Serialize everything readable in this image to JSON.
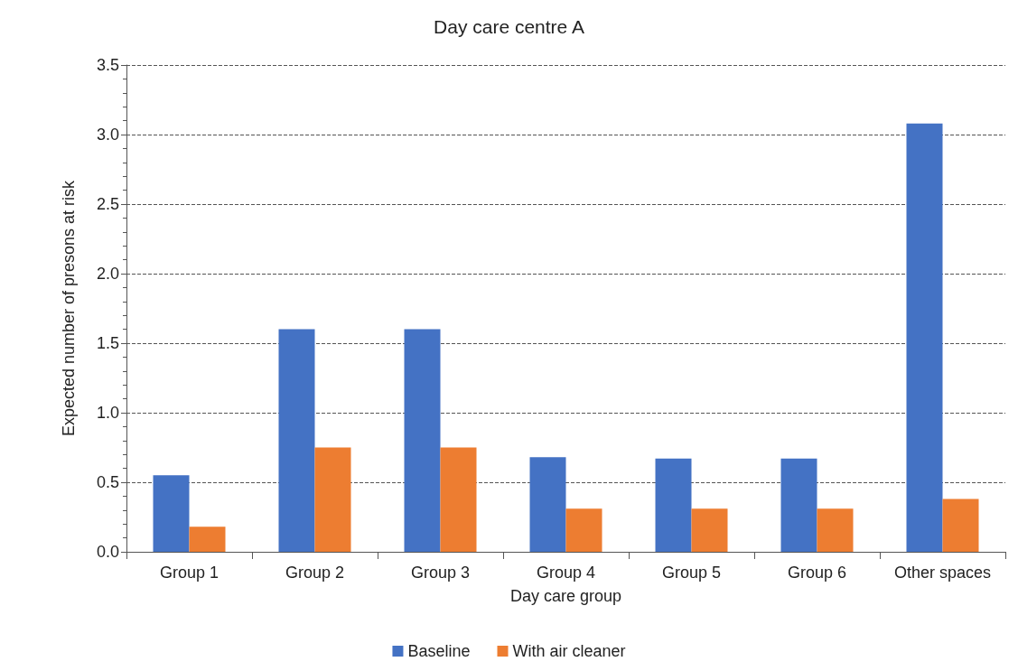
{
  "chart_data": {
    "type": "bar",
    "title": "Day care centre A",
    "xlabel": "Day care group",
    "ylabel": "Expected number of presons at risk",
    "categories": [
      "Group 1",
      "Group 2",
      "Group 3",
      "Group 4",
      "Group 5",
      "Group 6",
      "Other spaces"
    ],
    "series": [
      {
        "name": "Baseline",
        "color": "#4472c4",
        "values": [
          0.55,
          1.6,
          1.6,
          0.68,
          0.67,
          0.67,
          3.08
        ]
      },
      {
        "name": "With air cleaner",
        "color": "#ed7d31",
        "values": [
          0.18,
          0.75,
          0.75,
          0.31,
          0.31,
          0.31,
          0.38
        ]
      }
    ],
    "ylim": [
      0,
      3.5
    ],
    "yticks": [
      {
        "value": 0,
        "label": "0.0"
      },
      {
        "value": 0.5,
        "label": "0.5"
      },
      {
        "value": 1,
        "label": "1.0"
      },
      {
        "value": 1.5,
        "label": "1.5"
      },
      {
        "value": 2,
        "label": "2.0"
      },
      {
        "value": 2.5,
        "label": "2.5"
      },
      {
        "value": 3,
        "label": "3.0"
      },
      {
        "value": 3.5,
        "label": "3.5"
      }
    ],
    "grid": "y",
    "legend": "bottom"
  }
}
